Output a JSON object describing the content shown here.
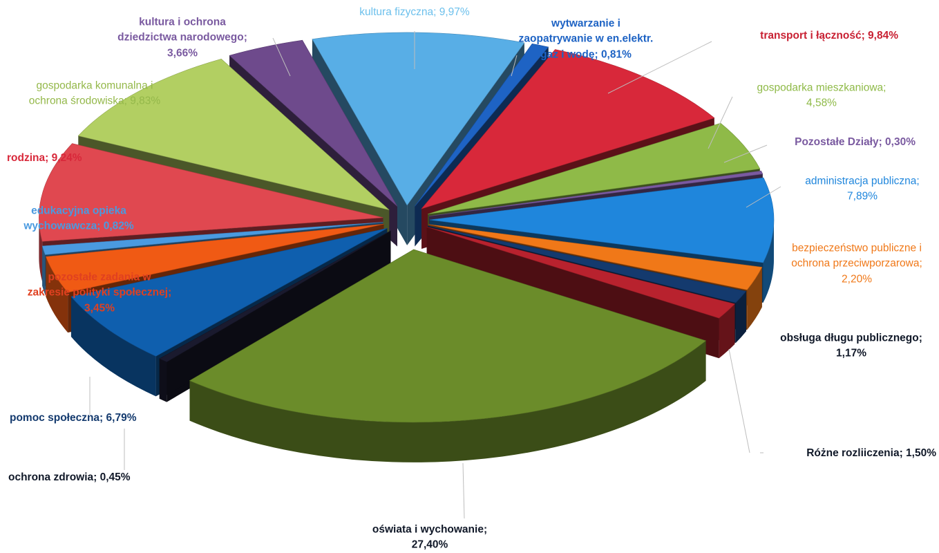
{
  "chart_data": {
    "type": "pie",
    "style": "3d exploded pie",
    "title": "",
    "legend": "none",
    "slices": [
      {
        "label": "kultura fizyczna",
        "display": "kultura fizyczna; 9,97%",
        "value": 9.97,
        "color": "#58aee6"
      },
      {
        "label": "wytwarzanie i zaopatrywanie w en.elektr. gaz i wodę",
        "display": "wytwarzanie i zaopatrywanie w en.elektr. gaz i wodę; 0,81%",
        "value": 0.81,
        "color": "#1e63c4"
      },
      {
        "label": "transport i łączność",
        "display": "transport i łączność; 9,84%",
        "value": 9.84,
        "color": "#d8283a"
      },
      {
        "label": "gospodarka mieszkaniowa",
        "display": "gospodarka mieszkaniowa; 4,58%",
        "value": 4.58,
        "color": "#8fba48"
      },
      {
        "label": "Pozostałe Działy",
        "display": "Pozostałe Działy; 0,30%",
        "value": 0.3,
        "color": "#7a5aa0"
      },
      {
        "label": "administracja publiczna",
        "display": "administracja publiczna; 7,89%",
        "value": 7.89,
        "color": "#1f86dc"
      },
      {
        "label": "bezpieczeństwo publiczne i ochrona przeciwporzarowa",
        "display": "bezpieczeństwo publiczne i ochrona przeciwporzarowa; 2,20%",
        "value": 2.2,
        "color": "#f07818"
      },
      {
        "label": "obsługa długu publicznego",
        "display": "obsługa długu publicznego; 1,17%",
        "value": 1.17,
        "color": "#143a6e"
      },
      {
        "label": "Różne rozliiczenia",
        "display": "Różne rozliiczenia; 1,50%",
        "value": 1.5,
        "color": "#b8222e"
      },
      {
        "label": "oświata i wychowanie",
        "display": "oświata i wychowanie; 27,40%",
        "value": 27.4,
        "color": "#6b8c2a"
      },
      {
        "label": "ochrona zdrowia",
        "display": "ochrona zdrowia; 0,45%",
        "value": 0.45,
        "color": "#1a1a2e"
      },
      {
        "label": "pomoc społeczna",
        "display": "pomoc społeczna; 6,79%",
        "value": 6.79,
        "color": "#0f5fae"
      },
      {
        "label": "pozostałe zadania w zakresie polityki społecznej",
        "display": "pozostałe zadania w zakresie polityki społecznej; 3,45%",
        "value": 3.45,
        "color": "#f05a14"
      },
      {
        "label": "edukacyjna opieka wychowawcza",
        "display": "edukacyjna opieka wychowawcza; 0,82%",
        "value": 0.82,
        "color": "#4a9ae0"
      },
      {
        "label": "rodzina",
        "display": "rodzina; 9,24%",
        "value": 9.24,
        "color": "#e04850"
      },
      {
        "label": "gospodarka komunalna i ochrona środowiska",
        "display": "gospodarka komunalna i ochrona środowiska; 9,83%",
        "value": 9.83,
        "color": "#b2cf62"
      },
      {
        "label": "kultura i ochrona dziedzictwa narodowego",
        "display": "kultura i ochrona dziedzictwa narodowego; 3,66%",
        "value": 3.66,
        "color": "#6e4a8c"
      }
    ]
  },
  "labels": [
    {
      "lines": [
        "kultura fizyczna; 9,97%"
      ],
      "color": "#6cc0ec",
      "bold": false
    },
    {
      "lines": [
        "wytwarzanie i",
        "zaopatrywanie w en.elektr.",
        "gaz i wodę; 0,81%"
      ],
      "color": "#1e63c4",
      "bold": true
    },
    {
      "lines": [
        "transport i łączność; 9,84%"
      ],
      "color": "#c82032",
      "bold": true
    },
    {
      "lines": [
        "gospodarka mieszkaniowa;",
        "4,58%"
      ],
      "color": "#8fba48",
      "bold": false
    },
    {
      "lines": [
        "Pozostałe Działy; 0,30%"
      ],
      "color": "#7a5aa0",
      "bold": true
    },
    {
      "lines": [
        "administracja publiczna;",
        "7,89%"
      ],
      "color": "#1f86dc",
      "bold": false
    },
    {
      "lines": [
        "bezpieczeństwo publiczne i",
        "ochrona przeciwporzarowa;",
        "2,20%"
      ],
      "color": "#f07818",
      "bold": false
    },
    {
      "lines": [
        "obsługa długu publicznego;",
        "1,17%"
      ],
      "color": "#101828",
      "bold": true
    },
    {
      "lines": [
        "Różne rozliiczenia; 1,50%"
      ],
      "color": "#101828",
      "bold": true
    },
    {
      "lines": [
        "oświata i wychowanie;",
        "27,40%"
      ],
      "color": "#101828",
      "bold": true
    },
    {
      "lines": [
        "ochrona zdrowia; 0,45%"
      ],
      "color": "#101828",
      "bold": true
    },
    {
      "lines": [
        "pomoc społeczna; 6,79%"
      ],
      "color": "#143a6e",
      "bold": true
    },
    {
      "lines": [
        "pozostałe zadania w",
        "zakresie polityki społecznej;",
        "3,45%"
      ],
      "color": "#e04020",
      "bold": true
    },
    {
      "lines": [
        "edukacyjna opieka",
        "wychowawcza; 0,82%"
      ],
      "color": "#4a9ae0",
      "bold": true
    },
    {
      "lines": [
        "rodzina; 9,24%"
      ],
      "color": "#d8283a",
      "bold": true
    },
    {
      "lines": [
        "gospodarka komunalna i",
        "ochrona środowiska; 9,83%"
      ],
      "color": "#94b84a",
      "bold": false
    },
    {
      "lines": [
        "kultura i ochrona",
        "dziedzictwa narodowego;",
        "3,66%"
      ],
      "color": "#7a5aa0",
      "bold": true
    }
  ]
}
